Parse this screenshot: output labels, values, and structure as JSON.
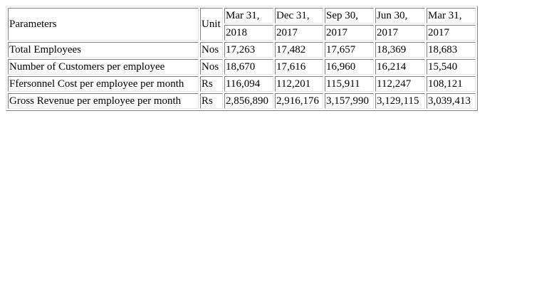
{
  "table": {
    "header": {
      "parameters": "Parameters",
      "unit": "Unit",
      "periods": [
        {
          "month": "Mar 31,",
          "year": "2018"
        },
        {
          "month": "Dec 31,",
          "year": "2017"
        },
        {
          "month": "Sep 30,",
          "year": "2017"
        },
        {
          "month": "Jun 30,",
          "year": "2017"
        },
        {
          "month": "Mar 31,",
          "year": "2017"
        }
      ]
    },
    "rows": [
      {
        "parameter": "Total Employees",
        "unit": "Nos",
        "values": [
          "17,263",
          "17,482",
          "17,657",
          "18,369",
          "18,683"
        ]
      },
      {
        "parameter": "Number of Customers per employee",
        "unit": "Nos",
        "values": [
          "18,670",
          "17,616",
          "16,960",
          "16,214",
          "15,540"
        ]
      },
      {
        "parameter": "Ffersonnel Cost per employee per month",
        "unit": "Rs",
        "values": [
          "116,094",
          "112,201",
          "115,911",
          "112,247",
          "108,121"
        ]
      },
      {
        "parameter": "Gross Revenue per employee per month",
        "unit": "Rs",
        "values": [
          "2,856,890",
          "2,916,176",
          "3,157,990",
          "3,129,115",
          "3,039,413"
        ]
      }
    ]
  }
}
